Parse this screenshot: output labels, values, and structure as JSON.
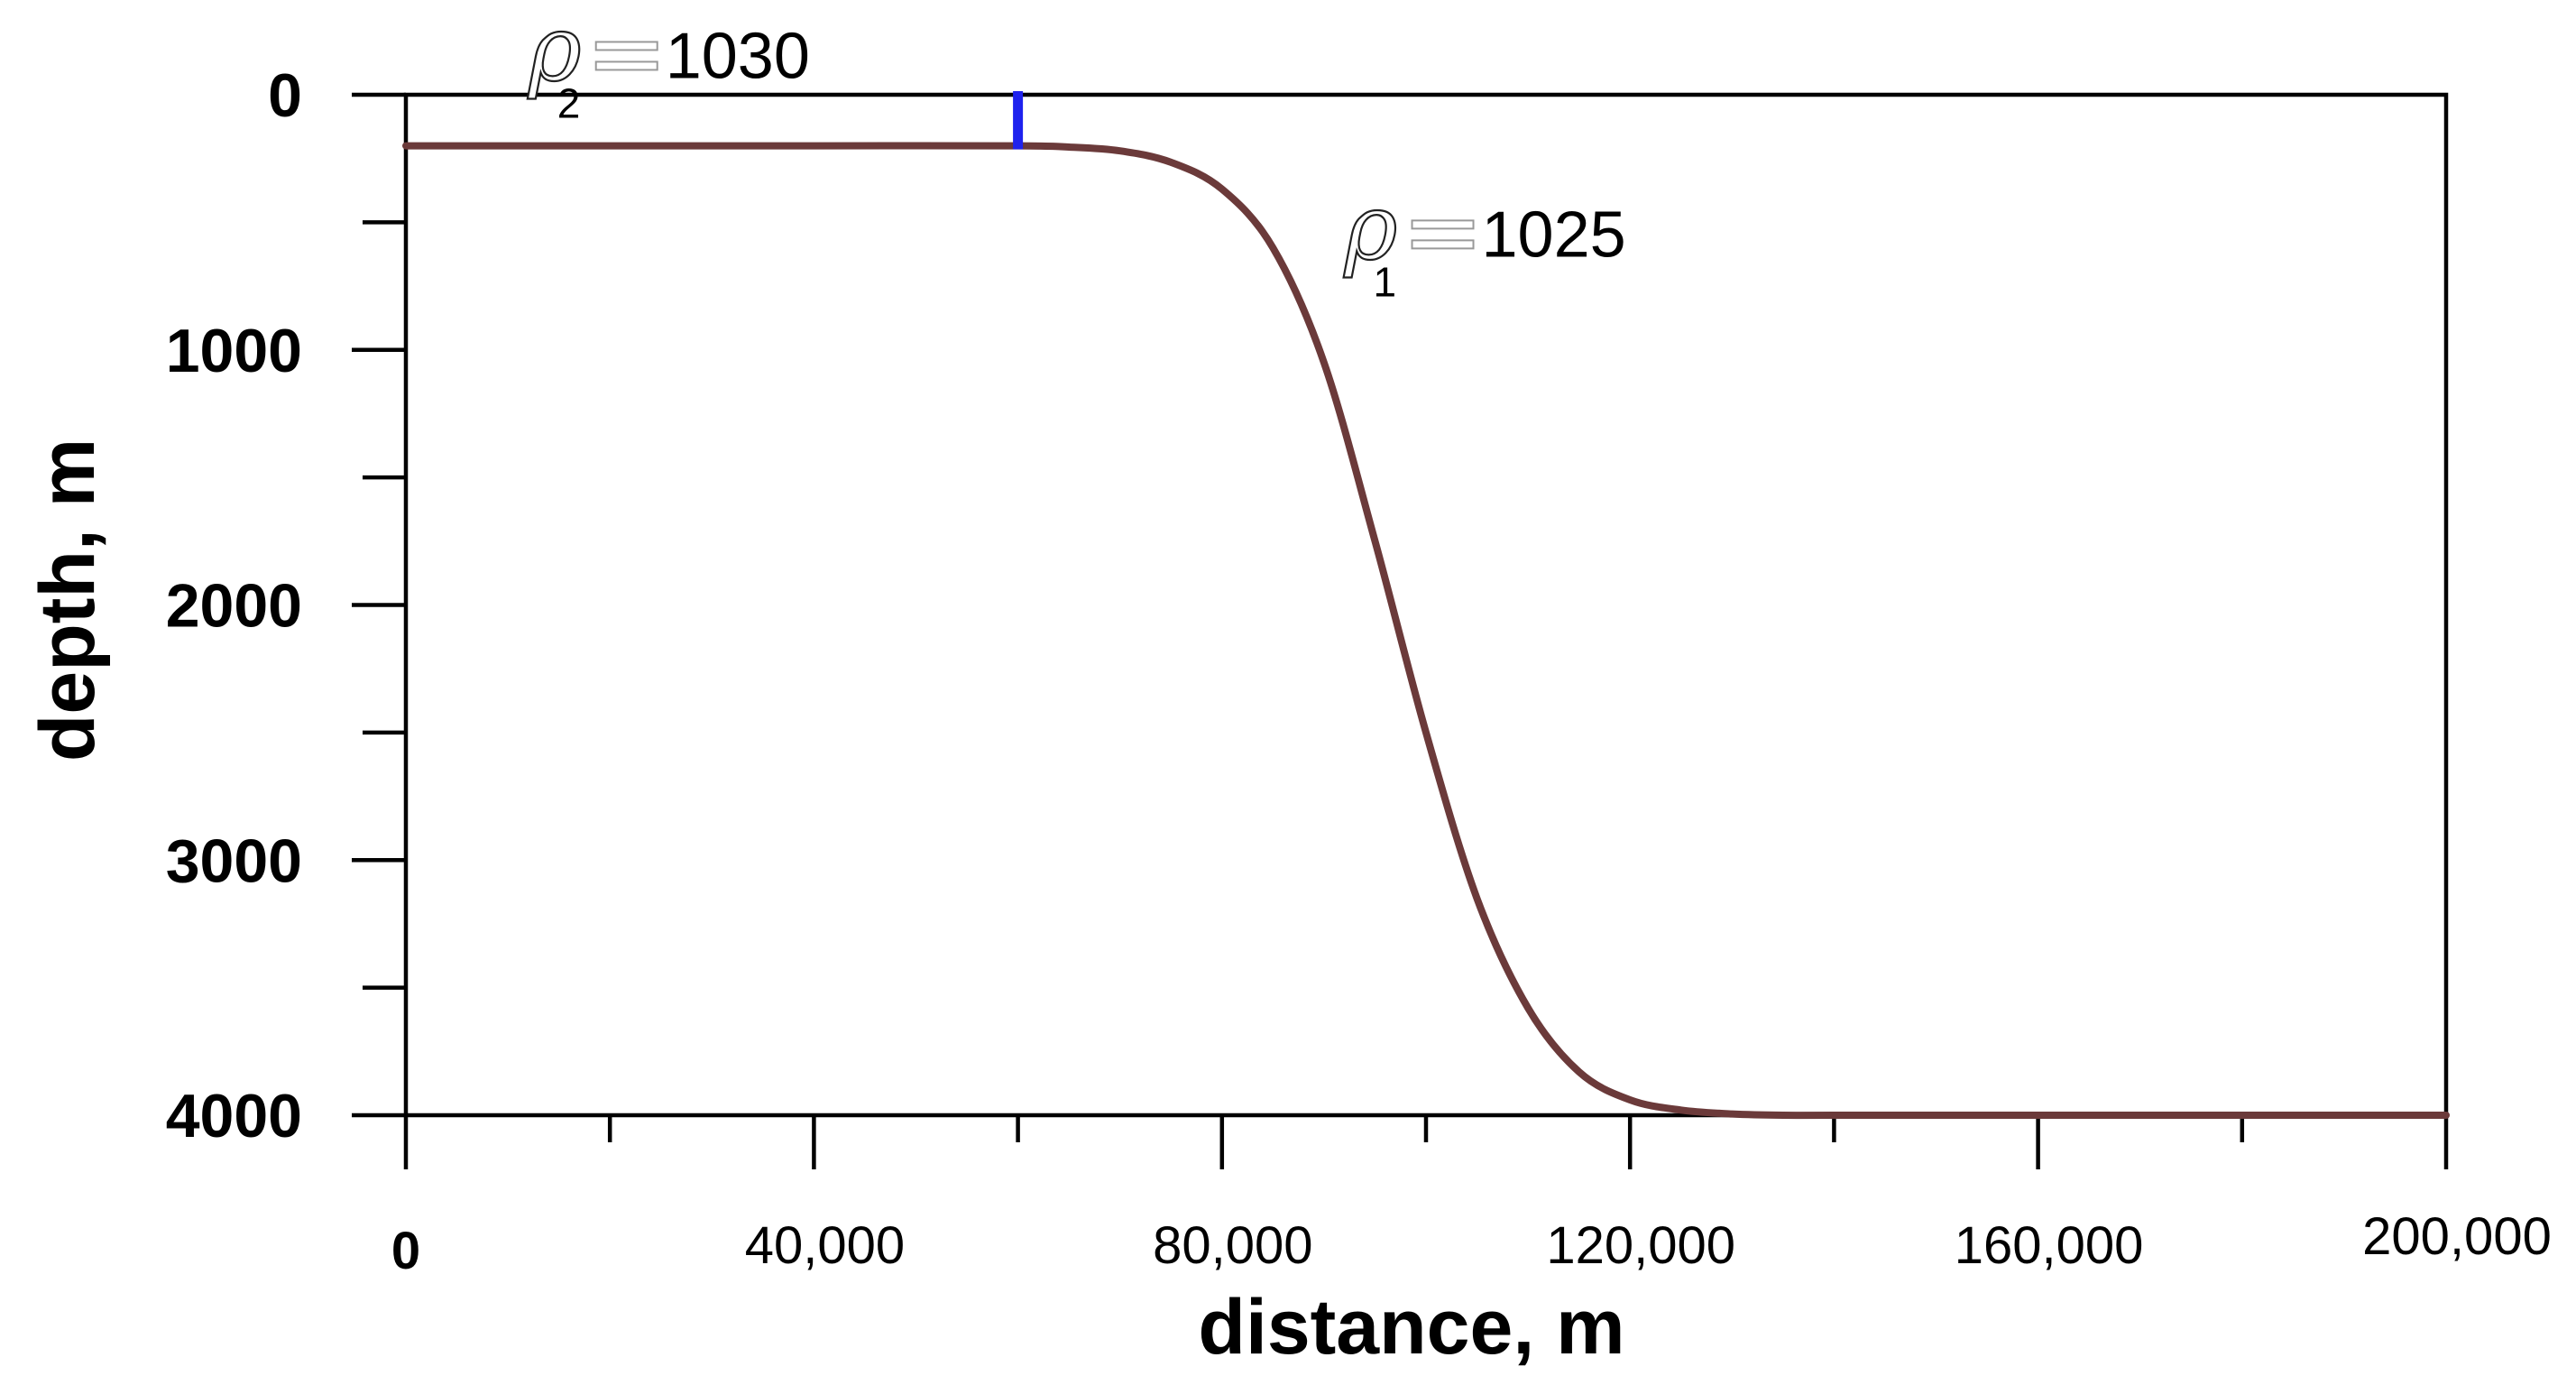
{
  "chart_data": {
    "type": "line",
    "title": "",
    "xlabel": "distance, m",
    "ylabel": "depth, m",
    "xlim": [
      0,
      200000
    ],
    "ylim": [
      0,
      4000
    ],
    "y_inverted": true,
    "grid": false,
    "x_ticks": [
      0,
      40000,
      80000,
      120000,
      160000,
      200000
    ],
    "x_tick_labels": [
      "0",
      "40,000",
      "80,000",
      "120,000",
      "160,000",
      "200,000"
    ],
    "x_minor_ticks": [
      20000,
      60000,
      100000,
      140000,
      180000
    ],
    "y_ticks": [
      0,
      1000,
      2000,
      3000,
      4000
    ],
    "y_tick_labels": [
      "0",
      "1000",
      "2000",
      "3000",
      "4000"
    ],
    "y_minor_ticks": [
      500,
      1500,
      2500,
      3500
    ],
    "series": [
      {
        "color": "#6b3a3a",
        "x": [
          0,
          20000,
          40000,
          60000,
          65000,
          70000,
          75000,
          80000,
          85000,
          90000,
          95000,
          100000,
          105000,
          110000,
          115000,
          120000,
          125000,
          130000,
          135000,
          140000,
          160000,
          180000,
          200000
        ],
        "y": [
          200,
          200,
          200,
          200,
          205,
          220,
          265,
          370,
          600,
          1050,
          1750,
          2500,
          3150,
          3580,
          3830,
          3940,
          3980,
          3995,
          4000,
          4000,
          4000,
          4000,
          4000
        ]
      }
    ],
    "markers": [
      {
        "type": "vertical-bar",
        "x": 60000,
        "y_from": 0,
        "y_to": 200,
        "color": "#1f22ee"
      }
    ],
    "annotations": [
      {
        "symbol": "ρ",
        "subscript": "2",
        "value": "1030",
        "x": 12000,
        "y": -200
      },
      {
        "symbol": "ρ",
        "subscript": "1",
        "value": "1025",
        "x": 92000,
        "y": 500
      }
    ]
  }
}
